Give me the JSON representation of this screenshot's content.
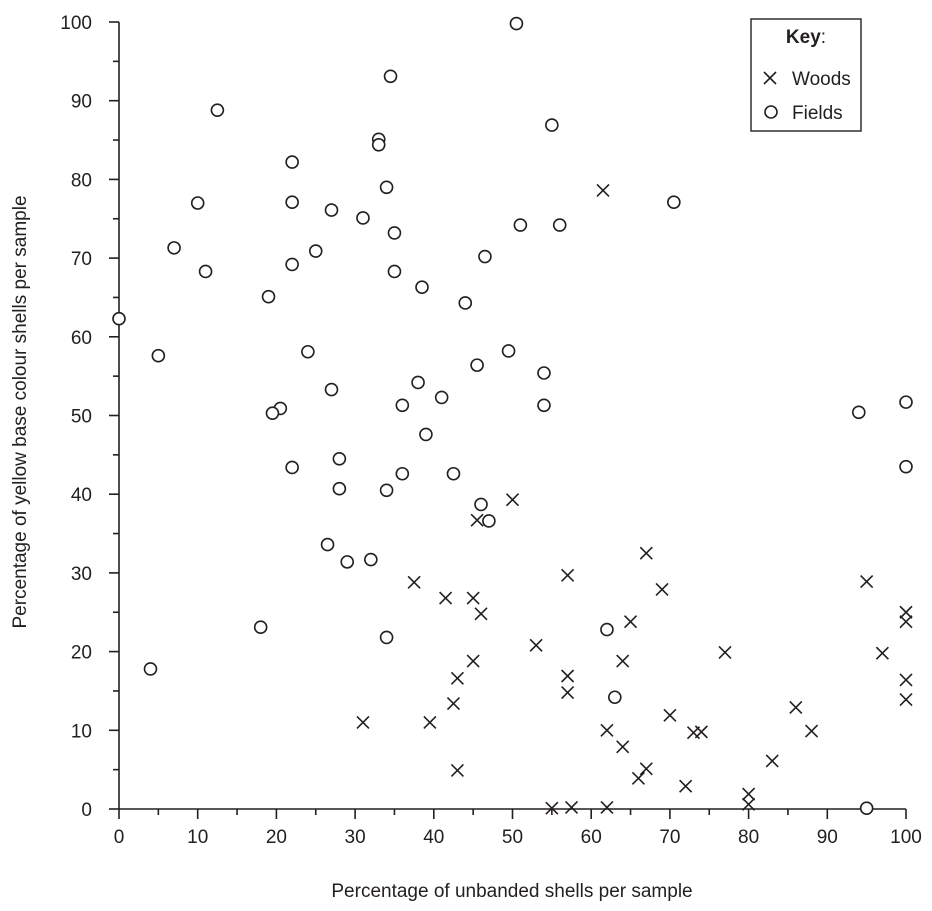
{
  "chart_data": {
    "type": "scatter",
    "title": "",
    "xlabel": "Percentage of unbanded shells per sample",
    "ylabel": "Percentage of yellow base colour shells per sample",
    "xlim": [
      0,
      100
    ],
    "ylim": [
      0,
      100
    ],
    "x_ticks": [
      "0",
      "10",
      "20",
      "30",
      "40",
      "50",
      "60",
      "70",
      "80",
      "90",
      "100"
    ],
    "y_ticks": [
      "0",
      "10",
      "20",
      "30",
      "40",
      "50",
      "60",
      "70",
      "80",
      "90",
      "100"
    ],
    "grid": false,
    "legend": {
      "title": "Key",
      "title_suffix": ":",
      "placement": "top-right",
      "entries": [
        "Woods",
        "Fields"
      ]
    },
    "series": [
      {
        "name": "Woods",
        "marker": "x",
        "points": [
          [
            61.5,
            78.6
          ],
          [
            50,
            39.3
          ],
          [
            45.5,
            36.7
          ],
          [
            67,
            32.5
          ],
          [
            57,
            29.7
          ],
          [
            37.5,
            28.8
          ],
          [
            95,
            28.9
          ],
          [
            69,
            27.9
          ],
          [
            41.5,
            26.8
          ],
          [
            45,
            26.8
          ],
          [
            46,
            24.8
          ],
          [
            100,
            25
          ],
          [
            65,
            23.8
          ],
          [
            100,
            23.8
          ],
          [
            53,
            20.8
          ],
          [
            77,
            19.9
          ],
          [
            97,
            19.8
          ],
          [
            45,
            18.8
          ],
          [
            64,
            18.8
          ],
          [
            57,
            16.9
          ],
          [
            43,
            16.6
          ],
          [
            100,
            16.4
          ],
          [
            57,
            14.8
          ],
          [
            100,
            13.9
          ],
          [
            42.5,
            13.4
          ],
          [
            86,
            12.9
          ],
          [
            70,
            11.9
          ],
          [
            31,
            11
          ],
          [
            39.5,
            11
          ],
          [
            62,
            10
          ],
          [
            73,
            9.7
          ],
          [
            74,
            9.8
          ],
          [
            88,
            9.9
          ],
          [
            64,
            7.9
          ],
          [
            83,
            6.1
          ],
          [
            67,
            5.1
          ],
          [
            43,
            4.9
          ],
          [
            66,
            3.9
          ],
          [
            72,
            2.9
          ],
          [
            80,
            1.9
          ],
          [
            80,
            0.6
          ],
          [
            55,
            0.1
          ],
          [
            57.5,
            0.2
          ],
          [
            62,
            0.2
          ]
        ]
      },
      {
        "name": "Fields",
        "marker": "o",
        "points": [
          [
            50.5,
            99.8
          ],
          [
            34.5,
            93.1
          ],
          [
            12.5,
            88.8
          ],
          [
            55,
            86.9
          ],
          [
            33,
            85.1
          ],
          [
            33,
            84.4
          ],
          [
            22,
            82.2
          ],
          [
            34,
            79
          ],
          [
            10,
            77
          ],
          [
            22,
            77.1
          ],
          [
            70.5,
            77.1
          ],
          [
            27,
            76.1
          ],
          [
            31,
            75.1
          ],
          [
            51,
            74.2
          ],
          [
            56,
            74.2
          ],
          [
            35,
            73.2
          ],
          [
            7,
            71.3
          ],
          [
            25,
            70.9
          ],
          [
            46.5,
            70.2
          ],
          [
            22,
            69.2
          ],
          [
            11,
            68.3
          ],
          [
            35,
            68.3
          ],
          [
            38.5,
            66.3
          ],
          [
            19,
            65.1
          ],
          [
            44,
            64.3
          ],
          [
            0,
            62.3
          ],
          [
            24,
            58.1
          ],
          [
            49.5,
            58.2
          ],
          [
            5,
            57.6
          ],
          [
            45.5,
            56.4
          ],
          [
            54,
            55.4
          ],
          [
            38,
            54.2
          ],
          [
            27,
            53.3
          ],
          [
            41,
            52.3
          ],
          [
            100,
            51.7
          ],
          [
            36,
            51.3
          ],
          [
            54,
            51.3
          ],
          [
            20.5,
            50.9
          ],
          [
            19.5,
            50.3
          ],
          [
            94,
            50.4
          ],
          [
            39,
            47.6
          ],
          [
            28,
            44.5
          ],
          [
            22,
            43.4
          ],
          [
            100,
            43.5
          ],
          [
            36,
            42.6
          ],
          [
            42.5,
            42.6
          ],
          [
            28,
            40.7
          ],
          [
            34,
            40.5
          ],
          [
            46,
            38.7
          ],
          [
            47,
            36.6
          ],
          [
            26.5,
            33.6
          ],
          [
            29,
            31.4
          ],
          [
            32,
            31.7
          ],
          [
            18,
            23.1
          ],
          [
            62,
            22.8
          ],
          [
            34,
            21.8
          ],
          [
            4,
            17.8
          ],
          [
            63,
            14.2
          ],
          [
            95,
            0.1
          ]
        ]
      }
    ]
  }
}
